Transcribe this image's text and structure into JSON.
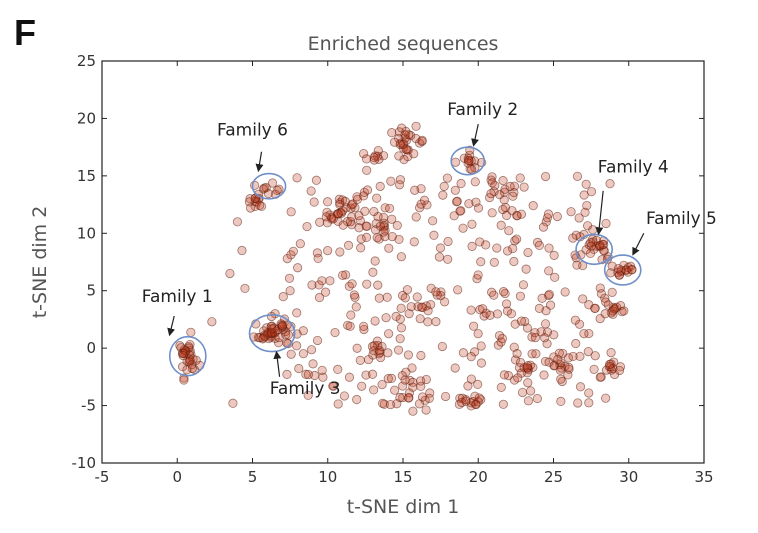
{
  "panel_label": "F",
  "chart_data": {
    "type": "scatter",
    "title": "Enriched sequences",
    "xlabel": "t-SNE dim 1",
    "ylabel": "t-SNE dim 2",
    "xlim": [
      -5,
      35
    ],
    "ylim": [
      -10,
      25
    ],
    "xticks": [
      "-5",
      "0",
      "5",
      "10",
      "15",
      "20",
      "25",
      "30",
      "35"
    ],
    "yticks": [
      "-10",
      "-5",
      "0",
      "5",
      "10",
      "15",
      "20",
      "25"
    ],
    "grid": false,
    "marker_color": "#c0391b",
    "marker_edge": "#5a1a0a",
    "circle_color": "#6f8fc9",
    "annotations": [
      {
        "label": "Family 1",
        "circle": [
          0.7,
          -0.7,
          1.2,
          1.7
        ],
        "text_xy": [
          0.0,
          4.0
        ],
        "arrow_from": [
          -0.2,
          2.8
        ],
        "arrow_to": [
          -0.5,
          1.2
        ]
      },
      {
        "label": "Family 2",
        "circle": [
          19.3,
          16.3,
          1.1,
          1.2
        ],
        "text_xy": [
          20.3,
          20.3
        ],
        "arrow_from": [
          20.0,
          19.5
        ],
        "arrow_to": [
          19.7,
          17.7
        ]
      },
      {
        "label": "Family 3",
        "circle": [
          6.3,
          1.3,
          1.5,
          1.6
        ],
        "text_xy": [
          8.5,
          -4.0
        ],
        "arrow_from": [
          6.8,
          -2.5
        ],
        "arrow_to": [
          6.6,
          -0.4
        ]
      },
      {
        "label": "Family 4",
        "circle": [
          27.7,
          8.6,
          1.2,
          1.3
        ],
        "text_xy": [
          30.3,
          15.3
        ],
        "arrow_from": [
          28.3,
          13.7
        ],
        "arrow_to": [
          28.0,
          10.0
        ]
      },
      {
        "label": "Family 5",
        "circle": [
          29.6,
          6.8,
          1.2,
          1.3
        ],
        "text_xy": [
          33.5,
          10.8
        ],
        "arrow_from": [
          31.0,
          10.0
        ],
        "arrow_to": [
          30.3,
          8.2
        ]
      },
      {
        "label": "Family 6",
        "circle": [
          6.1,
          14.1,
          1.1,
          1.1
        ],
        "text_xy": [
          5.0,
          18.5
        ],
        "arrow_from": [
          5.6,
          17.1
        ],
        "arrow_to": [
          5.4,
          15.5
        ]
      }
    ],
    "clusters": [
      {
        "cx": 0.7,
        "cy": -0.7,
        "sx": 0.25,
        "sy": 0.9,
        "n": 16
      },
      {
        "cx": 6.3,
        "cy": 1.4,
        "sx": 0.6,
        "sy": 0.6,
        "n": 28
      },
      {
        "cx": 5.3,
        "cy": 12.7,
        "sx": 0.6,
        "sy": 0.4,
        "n": 14
      },
      {
        "cx": 6.3,
        "cy": 14.1,
        "sx": 0.4,
        "sy": 0.3,
        "n": 8
      },
      {
        "cx": 11.3,
        "cy": 11.7,
        "sx": 0.7,
        "sy": 0.7,
        "n": 14
      },
      {
        "cx": 13.0,
        "cy": 16.5,
        "sx": 0.4,
        "sy": 0.3,
        "n": 10
      },
      {
        "cx": 15.3,
        "cy": 18.0,
        "sx": 0.6,
        "sy": 0.6,
        "n": 28
      },
      {
        "cx": 19.3,
        "cy": 16.3,
        "sx": 0.5,
        "sy": 0.4,
        "n": 14
      },
      {
        "cx": 21.4,
        "cy": 14.0,
        "sx": 0.4,
        "sy": 0.3,
        "n": 8
      },
      {
        "cx": 27.7,
        "cy": 8.6,
        "sx": 0.6,
        "sy": 0.4,
        "n": 16
      },
      {
        "cx": 29.6,
        "cy": 6.8,
        "sx": 0.5,
        "sy": 0.4,
        "n": 16
      },
      {
        "cx": 29.0,
        "cy": 3.5,
        "sx": 0.6,
        "sy": 0.5,
        "n": 14
      },
      {
        "cx": 29.0,
        "cy": -1.7,
        "sx": 0.4,
        "sy": 0.4,
        "n": 12
      },
      {
        "cx": 25.5,
        "cy": -1.5,
        "sx": 0.5,
        "sy": 0.5,
        "n": 14
      },
      {
        "cx": 23.0,
        "cy": -2.0,
        "sx": 0.4,
        "sy": 0.4,
        "n": 12
      },
      {
        "cx": 19.5,
        "cy": -4.8,
        "sx": 0.4,
        "sy": 0.3,
        "n": 10
      },
      {
        "cx": 15.5,
        "cy": -4.0,
        "sx": 0.7,
        "sy": 0.9,
        "n": 20
      },
      {
        "cx": 14.0,
        "cy": 10.0,
        "sx": 0.8,
        "sy": 0.5,
        "n": 14
      },
      {
        "cx": 13.5,
        "cy": -0.5,
        "sx": 0.5,
        "sy": 0.5,
        "n": 10
      }
    ],
    "background_points": {
      "n": 360,
      "x_range": [
        7.0,
        29.0
      ],
      "y_range": [
        -5.0,
        15.0
      ]
    },
    "outliers": [
      [
        3.7,
        -4.8
      ],
      [
        2.3,
        2.3
      ],
      [
        1.5,
        -1.5
      ],
      [
        4.5,
        5.2
      ],
      [
        4.3,
        8.5
      ],
      [
        3.5,
        6.5
      ],
      [
        6.5,
        3.0
      ],
      [
        7.5,
        5.0
      ],
      [
        8.0,
        7.0
      ],
      [
        4.0,
        11.0
      ]
    ]
  }
}
